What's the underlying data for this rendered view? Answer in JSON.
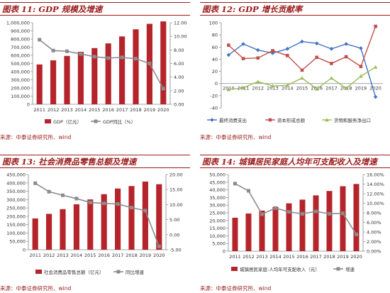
{
  "colors": {
    "bar": "#b5242a",
    "line": "#8c8c8c",
    "blue": "#4472c4",
    "red": "#c0504d",
    "green": "#9bbb59",
    "title": "#9b1b1b"
  },
  "source": "来源：中泰证券研究所、wind",
  "chart_data": [
    {
      "type": "bar",
      "title": "图表 11:  GDP 规模及增速",
      "categories": [
        "2011",
        "2012",
        "2013",
        "2014",
        "2015",
        "2016",
        "2017",
        "2018",
        "2019",
        "2020"
      ],
      "series": [
        {
          "name": "GDP（亿元）",
          "type": "bar",
          "axis": "left",
          "values": [
            487940,
            538580,
            592963,
            643563,
            688858,
            746395,
            832036,
            919281,
            986515,
            1015986
          ]
        },
        {
          "name": "GDP同比（%）",
          "type": "line",
          "axis": "right",
          "values": [
            9.5,
            7.9,
            7.8,
            7.4,
            7.0,
            6.8,
            6.9,
            6.7,
            6.0,
            2.3
          ]
        }
      ],
      "ylim_left": [
        0,
        1000000
      ],
      "yticks_left": [
        "0",
        "100,000",
        "200,000",
        "300,000",
        "400,000",
        "500,000",
        "600,000",
        "700,000",
        "800,000",
        "900,000",
        "1,000,000"
      ],
      "ylim_right": [
        0,
        12
      ],
      "yticks_right": [
        "0.00",
        "2.00",
        "4.00",
        "6.00",
        "8.00",
        "10.00",
        "12.00"
      ],
      "legend": "bottom"
    },
    {
      "type": "line",
      "title": "图表 12:  GDP 增长贡献率",
      "categories": [
        "2010",
        "2011",
        "2012",
        "2013",
        "2014",
        "2015",
        "2016",
        "2017",
        "2018",
        "2019",
        "2020"
      ],
      "series": [
        {
          "name": "最终消费支出",
          "values": [
            47,
            65,
            55,
            50,
            57,
            69,
            66,
            57,
            65,
            58,
            -22
          ]
        },
        {
          "name": "资本形成总额",
          "values": [
            63,
            41,
            42,
            54,
            46,
            22,
            43,
            33,
            44,
            28,
            94
          ]
        },
        {
          "name": "货物和服务净出口",
          "values": [
            -10,
            -7,
            3,
            -4,
            -3,
            9,
            -9,
            9,
            -8,
            12,
            27
          ]
        }
      ],
      "ylim": [
        -40,
        100
      ],
      "yticks": [
        "-40",
        "-20",
        "0",
        "20",
        "40",
        "60",
        "80",
        "100"
      ],
      "legend": "bottom"
    },
    {
      "type": "bar",
      "title": "图表 13:  社会消费品零售总额及增速",
      "categories": [
        "2011",
        "2012",
        "2013",
        "2014",
        "2015",
        "2016",
        "2017",
        "2018",
        "2019",
        "2020"
      ],
      "series": [
        {
          "name": "社会消费品零售总额（亿元）",
          "type": "bar",
          "axis": "left",
          "values": [
            187206,
            214433,
            242843,
            271896,
            300931,
            332316,
            366262,
            380987,
            408017,
            391981
          ]
        },
        {
          "name": "同比增速",
          "type": "line",
          "axis": "right",
          "values": [
            17.1,
            14.3,
            13.1,
            12.0,
            10.7,
            10.4,
            10.2,
            9.0,
            8.0,
            -3.9
          ]
        }
      ],
      "ylim_left": [
        0,
        450000
      ],
      "yticks_left": [
        "0",
        "50,000",
        "100,000",
        "150,000",
        "200,000",
        "250,000",
        "300,000",
        "350,000",
        "400,000",
        "450,000"
      ],
      "ylim_right": [
        -5,
        20
      ],
      "yticks_right": [
        "-5.00",
        "0.00",
        "5.00",
        "10.00",
        "15.00",
        "20.00"
      ],
      "legend": "bottom"
    },
    {
      "type": "bar",
      "title": "图表 14:  城镇居民家庭人均年可支配收入及增速",
      "categories": [
        "2011",
        "2012",
        "2013",
        "2014",
        "2015",
        "2016",
        "2017",
        "2018",
        "2019",
        "2020"
      ],
      "series": [
        {
          "name": "城镇居民家庭:人均年可支配收入（元）",
          "type": "bar",
          "axis": "left",
          "values": [
            21810,
            24565,
            26467,
            28844,
            31195,
            33616,
            36396,
            39251,
            42359,
            43834
          ]
        },
        {
          "name": "增速",
          "type": "line",
          "axis": "right",
          "values": [
            14.1,
            12.6,
            7.7,
            9.0,
            8.2,
            7.8,
            8.3,
            7.8,
            7.9,
            3.5
          ]
        }
      ],
      "ylim_left": [
        0,
        50000
      ],
      "yticks_left": [
        "0",
        "5,000",
        "10,000",
        "15,000",
        "20,000",
        "25,000",
        "30,000",
        "35,000",
        "40,000",
        "45,000",
        "50,000"
      ],
      "ylim_right": [
        0,
        16
      ],
      "yticks_right": [
        "0.00%",
        "2.00%",
        "4.00%",
        "6.00%",
        "8.00%",
        "10.00%",
        "12.00%",
        "14.00%",
        "16.00%"
      ],
      "legend": "bottom"
    }
  ]
}
